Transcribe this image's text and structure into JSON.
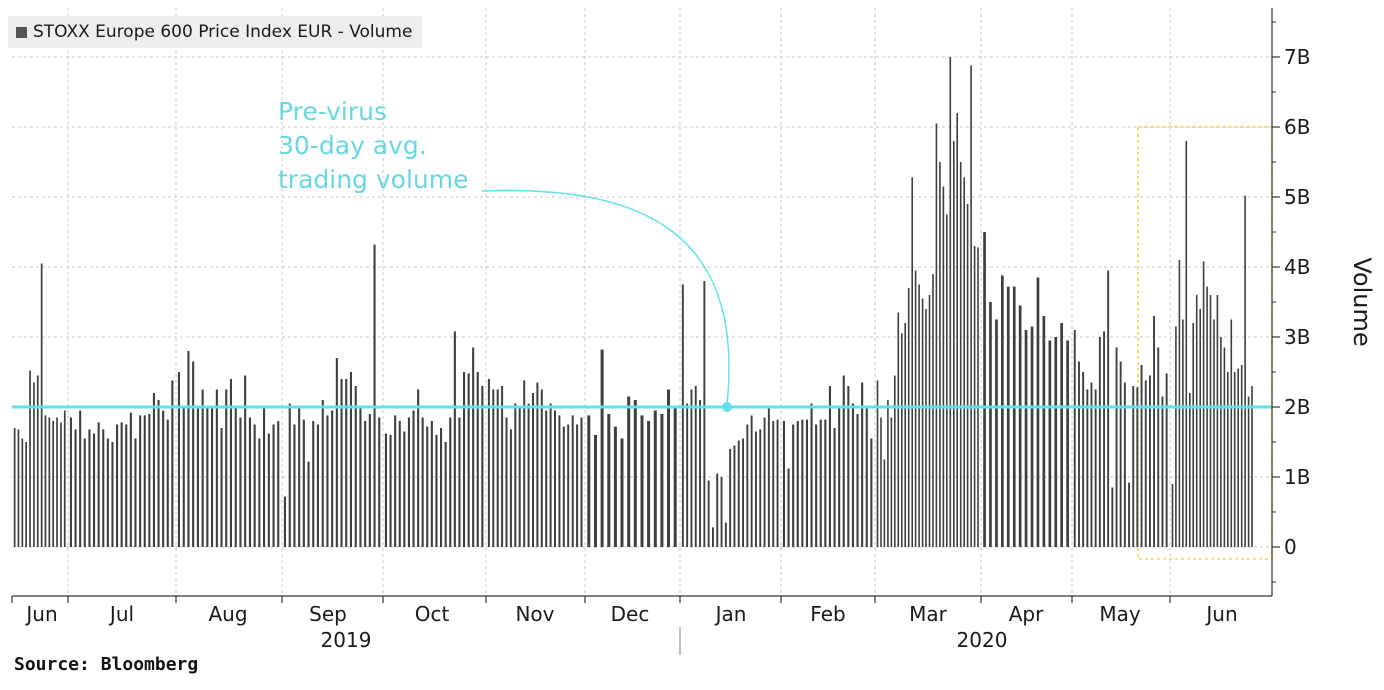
{
  "legend": {
    "label": "STOXX Europe 600 Price Index EUR - Volume",
    "color": "#555555"
  },
  "annotation": {
    "lines": [
      "Pre-virus",
      "30-day avg.",
      "trading volume"
    ],
    "color": "#6ad6e2"
  },
  "source": "Source: Bloomberg",
  "colors": {
    "bars": "#3f3f3f",
    "reference_line": "#5fe0ea",
    "highlight_box": "#f3e27a",
    "grid": "#c8c8c8"
  },
  "chart_data": {
    "type": "bar",
    "title": "",
    "xlabel": "",
    "ylabel": "Volume",
    "ylim": [
      -0.6,
      7.6
    ],
    "yticks": [
      0,
      1,
      2,
      3,
      4,
      5,
      6,
      7
    ],
    "ytick_labels": [
      "0",
      "1B",
      "2B",
      "3B",
      "4B",
      "5B",
      "6B",
      "7B"
    ],
    "unit": "billions of shares",
    "grid": true,
    "legend_position": "top-left",
    "month_labels": [
      "Jun",
      "Jul",
      "Aug",
      "Sep",
      "Oct",
      "Nov",
      "Dec",
      "Jan",
      "Feb",
      "Mar",
      "Apr",
      "May",
      "Jun"
    ],
    "year_labels": [
      "2019",
      "2020"
    ],
    "reference_line": {
      "label": "Pre-virus 30-day avg. trading volume",
      "value": 2.0
    },
    "highlight_period": {
      "from": "late May 2020",
      "to": "end of Jun 2020"
    },
    "series": [
      {
        "name": "STOXX Europe 600 Price Index EUR - Volume",
        "months": [
          {
            "month": "Jun",
            "values": [
              1.7,
              1.68,
              1.55,
              1.5,
              2.52,
              2.35,
              2.45,
              4.05,
              1.88,
              1.85,
              1.8,
              1.85,
              1.78,
              1.95
            ]
          },
          {
            "month": "Jul",
            "values": [
              1.85,
              1.68,
              1.95,
              1.55,
              1.68,
              1.62,
              1.78,
              1.68,
              1.55,
              1.5,
              1.75,
              1.78,
              1.75,
              1.92,
              1.55,
              1.88,
              1.88,
              1.9,
              2.2,
              2.1,
              1.95,
              1.82,
              2.38
            ]
          },
          {
            "month": "Aug",
            "values": [
              2.5,
              2.0,
              2.8,
              2.65,
              2.0,
              2.25,
              2.0,
              2.0,
              2.25,
              1.7,
              2.25,
              2.4,
              2.0,
              1.85,
              2.45,
              1.85,
              1.75,
              1.55,
              2.0,
              1.62,
              1.75,
              1.8
            ]
          },
          {
            "month": "Sep",
            "values": [
              0.72,
              2.05,
              1.75,
              2.0,
              1.82,
              1.22,
              1.8,
              1.75,
              2.1,
              1.88,
              1.95,
              2.7,
              2.4,
              2.4,
              2.5,
              2.3,
              2.0,
              1.8,
              1.9,
              4.32,
              1.85
            ]
          },
          {
            "month": "Oct",
            "values": [
              1.62,
              1.6,
              1.88,
              1.8,
              1.65,
              1.85,
              1.95,
              2.25,
              1.85,
              1.72,
              1.8,
              1.6,
              1.7,
              1.5,
              1.85,
              3.08,
              1.85,
              2.5,
              2.48,
              2.85,
              2.5,
              2.3
            ]
          },
          {
            "month": "Nov",
            "values": [
              2.4,
              2.25,
              2.25,
              2.3,
              1.85,
              1.68,
              2.05,
              2.0,
              2.38,
              2.05,
              2.2,
              2.35,
              2.25,
              1.95,
              2.05,
              1.95,
              1.88,
              1.72,
              1.75,
              1.88,
              1.75,
              1.85
            ]
          },
          {
            "month": "Dec",
            "values": [
              1.88,
              1.6,
              2.82,
              1.9,
              1.72,
              1.55,
              2.15,
              2.1,
              1.88,
              1.8,
              1.95,
              1.9,
              2.25,
              2.0
            ]
          },
          {
            "month": "Jan",
            "values": [
              3.75,
              2.05,
              2.25,
              2.3,
              2.1,
              3.8,
              0.95,
              0.28,
              1.05,
              1.0,
              0.35,
              1.4,
              1.45,
              1.52,
              1.55,
              1.75,
              1.88,
              1.65,
              1.68,
              1.85,
              2.0,
              1.8,
              1.82
            ]
          },
          {
            "month": "Feb",
            "values": [
              1.8,
              1.12,
              1.75,
              1.8,
              1.82,
              1.82,
              2.05,
              1.75,
              1.82,
              1.82,
              2.3,
              1.7,
              2.0,
              2.45,
              2.3,
              2.05,
              1.9,
              2.35,
              2.0,
              1.55
            ]
          },
          {
            "month": "Mar",
            "values": [
              2.38,
              1.85,
              1.25,
              2.1,
              1.85,
              2.45,
              3.35,
              3.05,
              3.2,
              3.7,
              5.28,
              3.95,
              3.75,
              3.55,
              3.4,
              3.6,
              3.9,
              6.05,
              5.5,
              5.15,
              4.75,
              7.0,
              5.8,
              6.2,
              5.5,
              5.28,
              4.9,
              6.88,
              4.3,
              4.28
            ]
          },
          {
            "month": "Apr",
            "values": [
              4.5,
              3.5,
              3.25,
              3.88,
              3.72,
              3.72,
              3.45,
              3.1,
              3.15,
              3.85,
              3.3,
              2.95,
              3.0,
              3.2,
              2.95
            ]
          },
          {
            "month": "May",
            "values": [
              3.1,
              2.65,
              2.5,
              2.25,
              2.35,
              2.25,
              3.0,
              3.08,
              3.95,
              0.85,
              2.85,
              2.65,
              2.35,
              0.92,
              2.3,
              2.28,
              2.6,
              2.38,
              2.45,
              3.3,
              2.85,
              2.15,
              2.48
            ]
          },
          {
            "month": "Jun",
            "values": [
              0.9,
              3.15,
              4.1,
              3.25,
              5.8,
              2.2,
              3.2,
              3.6,
              3.4,
              4.08,
              3.72,
              3.6,
              3.25,
              3.6,
              3.0,
              2.85,
              2.5,
              3.25,
              2.5,
              2.55,
              2.6,
              5.02,
              2.15,
              2.3
            ]
          }
        ]
      }
    ]
  }
}
